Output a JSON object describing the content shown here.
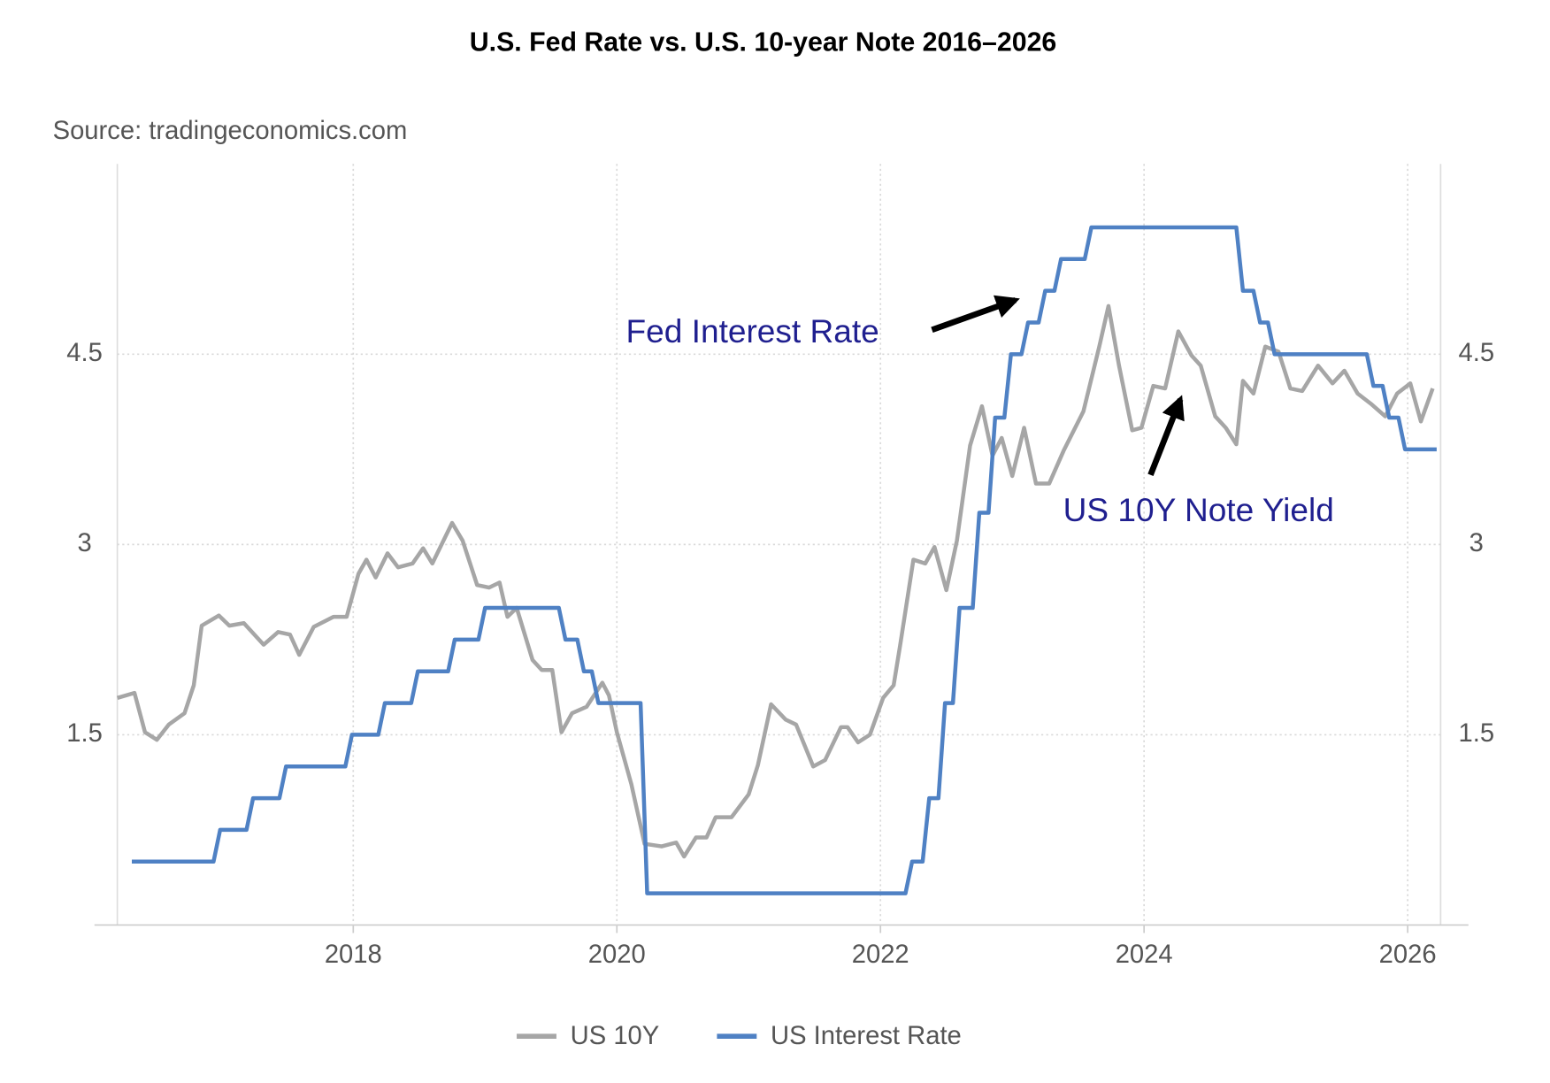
{
  "chart_data": {
    "type": "line",
    "title": "U.S. Fed Rate vs. U.S. 10-year Note 2016–2026",
    "source": "Source: tradingeconomics.com",
    "annotations": [
      "Fed Interest Rate",
      "US 10Y Note Yield"
    ],
    "xlim": [
      2016.21,
      2026.25
    ],
    "xticks": [
      2018,
      2020,
      2022,
      2024,
      2026
    ],
    "ylim": [
      0,
      6
    ],
    "yticks": [
      1.5,
      3,
      4.5
    ],
    "grid": true,
    "right_axis": true,
    "legend": "bottom",
    "series": [
      {
        "name": "US 10Y",
        "color": "#a6a6a6",
        "x": [
          2016.21,
          2016.34,
          2016.42,
          2016.51,
          2016.6,
          2016.72,
          2016.79,
          2016.85,
          2016.98,
          2017.06,
          2017.17,
          2017.32,
          2017.43,
          2017.52,
          2017.59,
          2017.7,
          2017.85,
          2017.95,
          2018.04,
          2018.1,
          2018.17,
          2018.26,
          2018.34,
          2018.45,
          2018.53,
          2018.6,
          2018.75,
          2018.83,
          2018.94,
          2019.03,
          2019.11,
          2019.17,
          2019.24,
          2019.36,
          2019.43,
          2019.51,
          2019.58,
          2019.66,
          2019.77,
          2019.89,
          2019.94,
          2020.0,
          2020.11,
          2020.21,
          2020.34,
          2020.45,
          2020.51,
          2020.6,
          2020.68,
          2020.75,
          2020.87,
          2021.0,
          2021.07,
          2021.17,
          2021.28,
          2021.36,
          2021.49,
          2021.58,
          2021.7,
          2021.75,
          2021.83,
          2021.92,
          2022.02,
          2022.1,
          2022.15,
          2022.25,
          2022.34,
          2022.41,
          2022.5,
          2022.58,
          2022.68,
          2022.77,
          2022.85,
          2022.92,
          2023.0,
          2023.09,
          2023.18,
          2023.28,
          2023.39,
          2023.54,
          2023.66,
          2023.73,
          2023.81,
          2023.91,
          2023.98,
          2024.07,
          2024.16,
          2024.26,
          2024.36,
          2024.43,
          2024.54,
          2024.62,
          2024.7,
          2024.75,
          2024.83,
          2024.92,
          2025.02,
          2025.11,
          2025.2,
          2025.32,
          2025.43,
          2025.52,
          2025.62,
          2025.72,
          2025.83,
          2025.92,
          2026.02,
          2026.1,
          2026.19
        ],
        "values": [
          1.79,
          1.83,
          1.52,
          1.46,
          1.58,
          1.67,
          1.89,
          2.36,
          2.44,
          2.36,
          2.38,
          2.21,
          2.31,
          2.29,
          2.13,
          2.35,
          2.43,
          2.43,
          2.77,
          2.88,
          2.74,
          2.93,
          2.82,
          2.85,
          2.97,
          2.85,
          3.17,
          3.03,
          2.68,
          2.66,
          2.7,
          2.43,
          2.5,
          2.09,
          2.01,
          2.01,
          1.52,
          1.67,
          1.72,
          1.91,
          1.81,
          1.52,
          1.11,
          0.64,
          0.62,
          0.65,
          0.54,
          0.69,
          0.69,
          0.85,
          0.85,
          1.03,
          1.26,
          1.74,
          1.62,
          1.58,
          1.25,
          1.3,
          1.56,
          1.56,
          1.44,
          1.5,
          1.79,
          1.89,
          2.21,
          2.88,
          2.85,
          2.98,
          2.64,
          3.03,
          3.78,
          4.09,
          3.7,
          3.84,
          3.54,
          3.92,
          3.48,
          3.48,
          3.74,
          4.05,
          4.56,
          4.88,
          4.41,
          3.9,
          3.92,
          4.25,
          4.23,
          4.68,
          4.49,
          4.41,
          4.01,
          3.92,
          3.79,
          4.29,
          4.19,
          4.56,
          4.52,
          4.23,
          4.21,
          4.41,
          4.27,
          4.37,
          4.19,
          4.11,
          4.01,
          4.19,
          4.27,
          3.97,
          4.23
        ]
      },
      {
        "name": "US Interest Rate",
        "color": "#4f81c4",
        "x": [
          2016.32,
          2016.94,
          2016.99,
          2017.19,
          2017.24,
          2017.44,
          2017.49,
          2017.94,
          2017.99,
          2018.19,
          2018.24,
          2018.44,
          2018.49,
          2018.72,
          2018.77,
          2018.95,
          2019.0,
          2019.56,
          2019.61,
          2019.7,
          2019.75,
          2019.81,
          2019.86,
          2020.18,
          2020.23,
          2022.19,
          2022.24,
          2022.32,
          2022.37,
          2022.44,
          2022.49,
          2022.55,
          2022.6,
          2022.7,
          2022.75,
          2022.82,
          2022.87,
          2022.94,
          2022.99,
          2023.07,
          2023.12,
          2023.2,
          2023.25,
          2023.32,
          2023.37,
          2023.55,
          2023.6,
          2024.7,
          2024.75,
          2024.83,
          2024.88,
          2024.94,
          2024.99,
          2025.69,
          2025.74,
          2025.81,
          2025.86,
          2025.93,
          2025.98,
          2026.22
        ],
        "values": [
          0.5,
          0.5,
          0.75,
          0.75,
          1,
          1,
          1.25,
          1.25,
          1.5,
          1.5,
          1.75,
          1.75,
          2,
          2,
          2.25,
          2.25,
          2.5,
          2.5,
          2.25,
          2.25,
          2,
          2,
          1.75,
          1.75,
          0.25,
          0.25,
          0.5,
          0.5,
          1,
          1,
          1.75,
          1.75,
          2.5,
          2.5,
          3.25,
          3.25,
          4,
          4,
          4.5,
          4.5,
          4.75,
          4.75,
          5,
          5,
          5.25,
          5.25,
          5.5,
          5.5,
          5,
          5,
          4.75,
          4.75,
          4.5,
          4.5,
          4.25,
          4.25,
          4,
          4,
          3.75,
          3.75
        ]
      }
    ]
  }
}
